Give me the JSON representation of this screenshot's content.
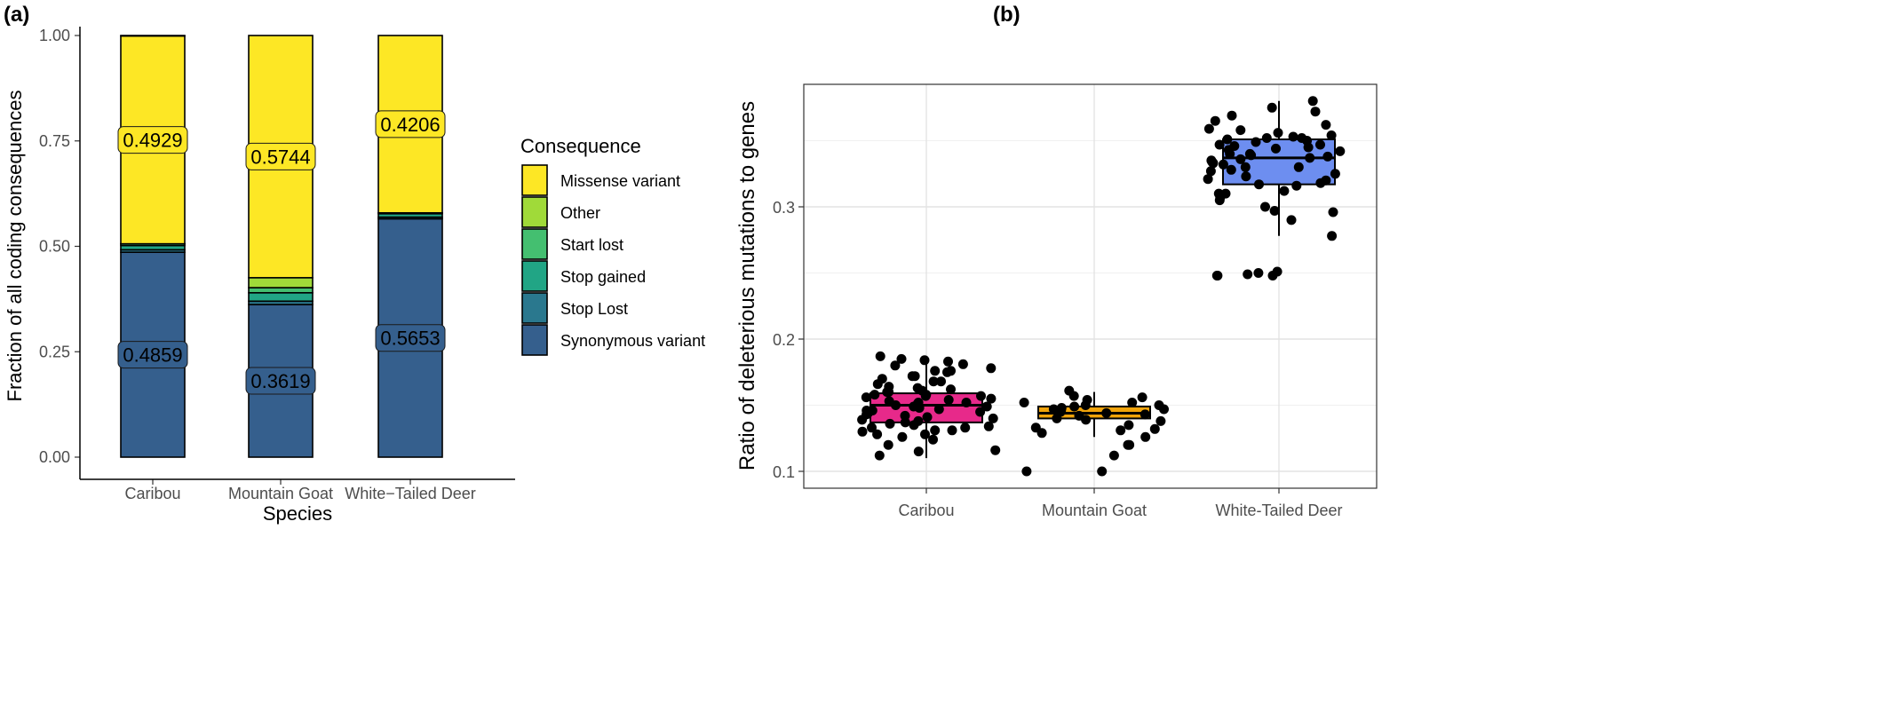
{
  "chart_data": [
    {
      "panel": "(a)",
      "type": "bar",
      "stacked": true,
      "xlabel": "Species",
      "ylabel": "Fraction of all coding consequences",
      "ylim": [
        0,
        1
      ],
      "yticks": [
        "0.00",
        "0.25",
        "0.50",
        "0.75",
        "1.00"
      ],
      "categories": [
        "Caribou",
        "Mountain Goat",
        "White−Tailed Deer"
      ],
      "legend": {
        "title": "Consequence",
        "placement": "right",
        "entries": [
          "Missense variant",
          "Other",
          "Start lost",
          "Stop gained",
          "Stop Lost",
          "Synonymous variant"
        ]
      },
      "series": [
        {
          "name": "Synonymous variant",
          "color": "#355f8d",
          "values": [
            0.4859,
            0.3619,
            0.5653
          ]
        },
        {
          "name": "Stop Lost",
          "color": "#2a788e",
          "values": [
            0.006,
            0.008,
            0.004
          ]
        },
        {
          "name": "Stop gained",
          "color": "#21a585",
          "values": [
            0.01,
            0.02,
            0.008
          ]
        },
        {
          "name": "Start lost",
          "color": "#44bf70",
          "values": [
            0.004,
            0.012,
            0.002
          ]
        },
        {
          "name": "Other",
          "color": "#a0da39",
          "values": [
            0.0001,
            0.0237,
            0.0001
          ]
        },
        {
          "name": "Missense variant",
          "color": "#fde725",
          "values": [
            0.4929,
            0.5744,
            0.4206
          ]
        }
      ],
      "segment_labels": [
        {
          "species": "Caribou",
          "series": "Missense variant",
          "text": "0.4929"
        },
        {
          "species": "Caribou",
          "series": "Synonymous variant",
          "text": "0.4859"
        },
        {
          "species": "Mountain Goat",
          "series": "Missense variant",
          "text": "0.5744"
        },
        {
          "species": "Mountain Goat",
          "series": "Synonymous variant",
          "text": "0.3619"
        },
        {
          "species": "White−Tailed Deer",
          "series": "Missense variant",
          "text": "0.4206"
        },
        {
          "species": "White−Tailed Deer",
          "series": "Synonymous variant",
          "text": "0.5653"
        }
      ]
    },
    {
      "panel": "(b)",
      "type": "box",
      "ylabel": "Ratio of deleterious mutations to genes",
      "ylim": [
        0.09,
        0.39
      ],
      "yticks": [
        "0.1",
        "0.2",
        "0.3"
      ],
      "grid": true,
      "categories": [
        "Caribou",
        "Mountain Goat",
        "White-Tailed Deer"
      ],
      "boxes": [
        {
          "name": "Caribou",
          "color": "#e7298a",
          "whisker_low": 0.11,
          "q1": 0.137,
          "median": 0.15,
          "q3": 0.159,
          "whisker_high": 0.186
        },
        {
          "name": "Mountain Goat",
          "color": "#f0a30a",
          "whisker_low": 0.126,
          "q1": 0.14,
          "median": 0.144,
          "q3": 0.149,
          "whisker_high": 0.16
        },
        {
          "name": "White-Tailed Deer",
          "color": "#6d8ef0",
          "whisker_low": 0.278,
          "q1": 0.317,
          "median": 0.337,
          "q3": 0.351,
          "whisker_high": 0.38
        }
      ],
      "points": [
        {
          "group": "Caribou",
          "values": [
            0.128,
            0.131,
            0.133,
            0.136,
            0.138,
            0.141,
            0.143,
            0.145,
            0.147,
            0.149,
            0.15,
            0.152,
            0.154,
            0.156,
            0.158,
            0.16,
            0.162,
            0.166,
            0.176,
            0.184,
            0.187,
            0.13,
            0.134,
            0.14,
            0.146,
            0.152,
            0.155,
            0.17,
            0.172,
            0.168,
            0.176,
            0.18,
            0.112,
            0.116,
            0.115,
            0.12,
            0.124,
            0.126,
            0.128,
            0.133,
            0.137,
            0.142,
            0.146,
            0.149,
            0.153,
            0.157,
            0.161,
            0.164,
            0.168,
            0.172,
            0.181,
            0.183,
            0.158,
            0.16,
            0.148,
            0.144,
            0.139,
            0.135,
            0.131,
            0.175,
            0.178,
            0.185,
            0.151,
            0.157,
            0.163
          ]
        },
        {
          "group": "Mountain Goat",
          "values": [
            0.156,
            0.154,
            0.15,
            0.145,
            0.14,
            0.135,
            0.129,
            0.148,
            0.152,
            0.143,
            0.138,
            0.132,
            0.126,
            0.12,
            0.112,
            0.1,
            0.1,
            0.161,
            0.157,
            0.147,
            0.142,
            0.131,
            0.12,
            0.146,
            0.15,
            0.152,
            0.149,
            0.144,
            0.139,
            0.133,
            0.147
          ]
        },
        {
          "group": "White-Tailed Deer",
          "values": [
            0.248,
            0.278,
            0.29,
            0.297,
            0.31,
            0.318,
            0.325,
            0.33,
            0.335,
            0.34,
            0.345,
            0.35,
            0.352,
            0.354,
            0.358,
            0.362,
            0.369,
            0.333,
            0.347,
            0.327,
            0.312,
            0.32,
            0.338,
            0.343,
            0.356,
            0.365,
            0.249,
            0.251,
            0.248,
            0.25,
            0.336,
            0.34,
            0.347,
            0.351,
            0.328,
            0.321,
            0.316,
            0.307,
            0.3,
            0.332,
            0.344,
            0.352,
            0.359,
            0.372,
            0.375,
            0.38,
            0.349,
            0.342,
            0.337,
            0.33,
            0.323,
            0.317,
            0.31,
            0.296,
            0.305,
            0.248,
            0.346,
            0.339,
            0.334,
            0.353
          ]
        }
      ]
    }
  ]
}
